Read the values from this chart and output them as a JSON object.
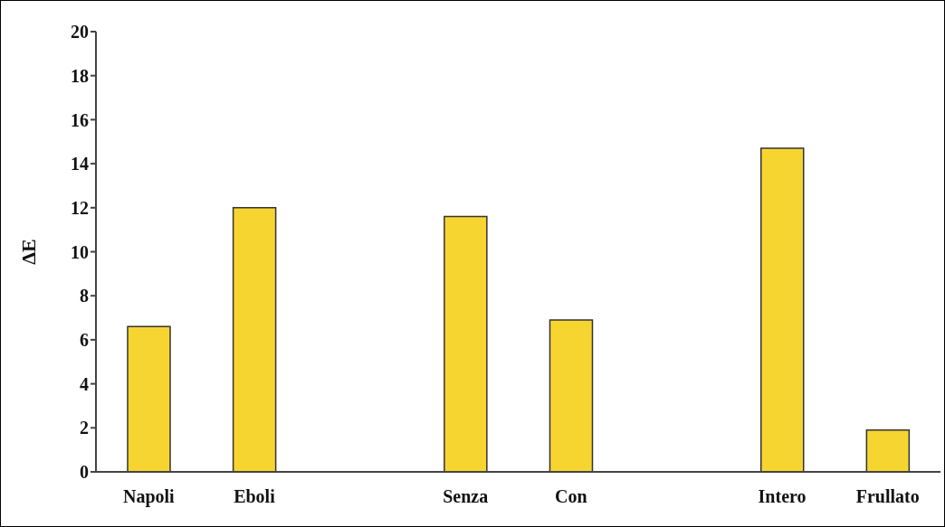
{
  "chart_data": {
    "type": "bar",
    "ylabel": "ΔE",
    "categories": [
      "Napoli",
      "Eboli",
      null,
      "Senza",
      "Con",
      null,
      "Intero",
      "Frullato"
    ],
    "values": [
      6.6,
      12.0,
      null,
      11.6,
      6.9,
      null,
      14.7,
      1.9
    ],
    "color": "#f7d531",
    "ylim": [
      0,
      20
    ],
    "yticks": [
      0,
      2,
      4,
      6,
      8,
      10,
      12,
      14,
      16,
      18,
      20
    ],
    "grid": false,
    "legend": false
  }
}
